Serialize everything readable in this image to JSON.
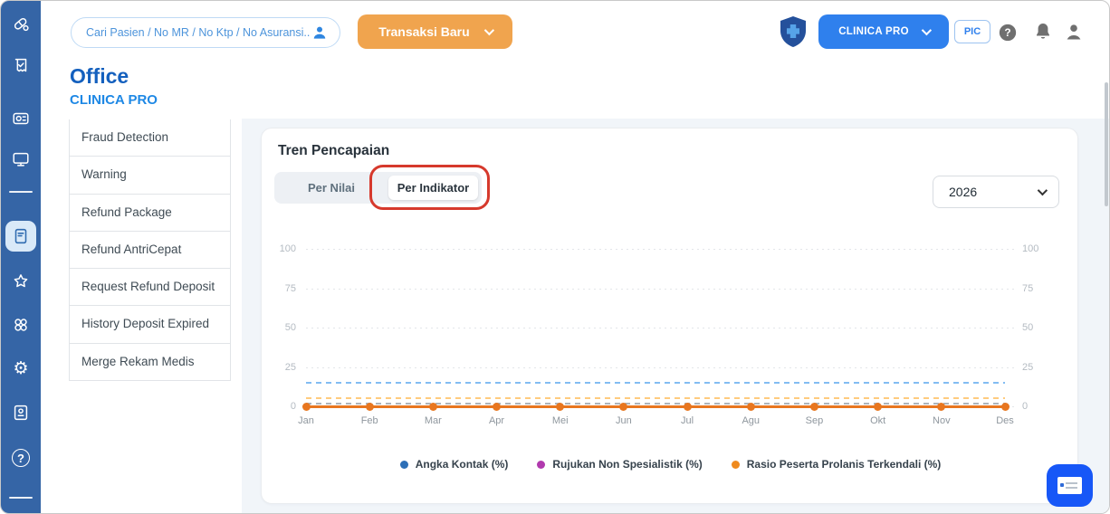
{
  "header": {
    "search_placeholder": "Cari Pasien / No MR / No Ktp / No Asuransi...",
    "new_transaction_label": "Transaksi Baru",
    "clinic_button_label": "CLINICA PRO",
    "pic_badge": "PIC"
  },
  "page": {
    "title": "Office",
    "subtitle": "CLINICA PRO"
  },
  "menu": {
    "items": [
      "Fraud Detection",
      "Warning",
      "Refund Package",
      "Refund AntriCepat",
      "Request Refund Deposit",
      "History Deposit Expired",
      "Merge Rekam Medis"
    ]
  },
  "panel": {
    "title": "Tren Pencapaian",
    "tabs": [
      {
        "label": "Per Nilai",
        "active": false
      },
      {
        "label": "Per Indikator",
        "active": true,
        "annotated": true
      }
    ],
    "year_selector": {
      "value": "2026"
    }
  },
  "chart_data": {
    "type": "line",
    "title": "Tren Pencapaian",
    "year": "2026",
    "categories": [
      "Jan",
      "Feb",
      "Mar",
      "Apr",
      "Mei",
      "Jun",
      "Jul",
      "Agu",
      "Sep",
      "Okt",
      "Nov",
      "Des"
    ],
    "y_ticks": [
      100,
      75,
      50,
      25,
      0
    ],
    "ylim": [
      0,
      100
    ],
    "grid": "dotted",
    "legend_position": "bottom",
    "series": [
      {
        "name": "Angka Kontak (%)",
        "color": "#2D6FB7",
        "values": [
          0,
          0,
          0,
          0,
          0,
          0,
          0,
          0,
          0,
          0,
          0,
          0
        ]
      },
      {
        "name": "Rujukan Non Spesialistik (%)",
        "color": "#B13AAE",
        "values": [
          0,
          0,
          0,
          0,
          0,
          0,
          0,
          0,
          0,
          0,
          0,
          0
        ]
      },
      {
        "name": "Rasio Peserta Prolanis Terkendali (%)",
        "color": "#E8761F",
        "values": [
          0,
          0,
          0,
          0,
          0,
          0,
          0,
          0,
          0,
          0,
          0,
          0
        ]
      }
    ],
    "reference_lines": [
      {
        "value": 15,
        "color": "#82BCF2",
        "style": "dashed"
      },
      {
        "value": 5,
        "color": "#FFCB7E",
        "style": "dashed"
      },
      {
        "value": 2,
        "color": "#ADB4BB",
        "style": "dashed"
      }
    ]
  },
  "colors": {
    "sidebar": "#3565A6",
    "accent_blue": "#2F80ED",
    "accent_orange": "#F0A44E",
    "annotation_red": "#D6392C",
    "series_solid_orange": "#E8761F",
    "chat_button": "#1757F7"
  }
}
